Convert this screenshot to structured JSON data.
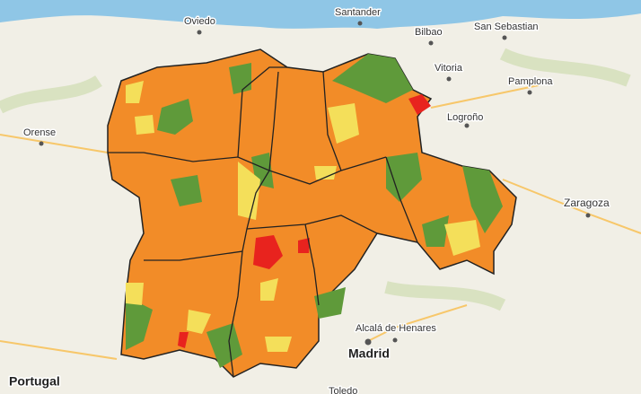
{
  "map": {
    "labels": [
      {
        "text": "Oviedo"
      },
      {
        "text": "Santander"
      },
      {
        "text": "Bilbao"
      },
      {
        "text": "San Sebastian"
      },
      {
        "text": "Vitoria"
      },
      {
        "text": "Pamplona"
      },
      {
        "text": "Logroño"
      },
      {
        "text": "Orense"
      },
      {
        "text": "Zaragoza"
      },
      {
        "text": "Alcalá de Henares"
      },
      {
        "text": "Madrid"
      },
      {
        "text": "Portugal"
      },
      {
        "text": "Toledo"
      }
    ]
  }
}
